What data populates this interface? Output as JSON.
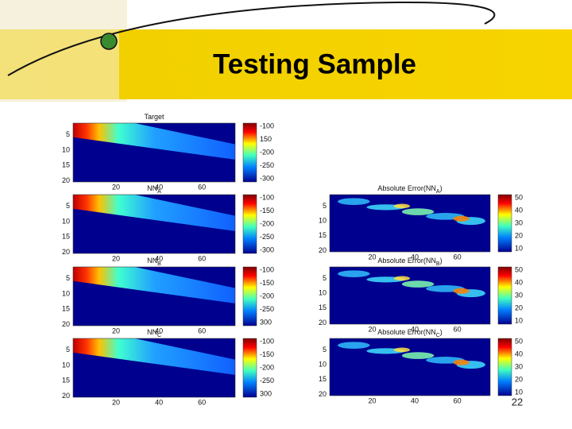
{
  "slide": {
    "title": "Testing Sample",
    "page_number": "22",
    "left_panels": [
      {
        "title": "Target",
        "yticks": [
          "5",
          "10",
          "15",
          "20"
        ],
        "xticks": [
          "20",
          "40",
          "60"
        ],
        "colorbar": [
          "-100",
          "150",
          "-200",
          "-250",
          "-300"
        ]
      },
      {
        "title": "NN",
        "subscript": "A",
        "yticks": [
          "5",
          "10",
          "15",
          "20"
        ],
        "xticks": [
          "20",
          "40",
          "60"
        ],
        "colorbar": [
          "-100",
          "-150",
          "-200",
          "-250",
          "-300"
        ]
      },
      {
        "title": "NN",
        "subscript": "B",
        "yticks": [
          "5",
          "10",
          "15",
          "20"
        ],
        "xticks": [
          "20",
          "40",
          "60"
        ],
        "colorbar": [
          "-100",
          "-150",
          "-200",
          "-250",
          "300"
        ]
      },
      {
        "title": "NN",
        "subscript": "C",
        "yticks": [
          "5",
          "10",
          "15",
          "20"
        ],
        "xticks": [
          "20",
          "40",
          "60"
        ],
        "colorbar": [
          "-100",
          "-150",
          "-200",
          "-250",
          "300"
        ]
      }
    ],
    "right_panels": [
      {
        "title": "Absolute Error(NN",
        "subscript": "A",
        "suffix": ")",
        "yticks": [
          "5",
          "10",
          "15",
          "20"
        ],
        "xticks": [
          "20",
          "40",
          "60"
        ],
        "colorbar": [
          "50",
          "40",
          "30",
          "20",
          "10"
        ]
      },
      {
        "title": "Absolute Error(NN",
        "subscript": "B",
        "suffix": ")",
        "yticks": [
          "5",
          "10",
          "15",
          "20"
        ],
        "xticks": [
          "20",
          "40",
          "60"
        ],
        "colorbar": [
          "50",
          "40",
          "30",
          "20",
          "10"
        ]
      },
      {
        "title": "Absolute Error(NN",
        "subscript": "C",
        "suffix": ")",
        "yticks": [
          "5",
          "10",
          "15",
          "20"
        ],
        "xticks": [
          "20",
          "40",
          "60"
        ],
        "colorbar": [
          "50",
          "40",
          "30",
          "20",
          "10"
        ]
      }
    ]
  }
}
